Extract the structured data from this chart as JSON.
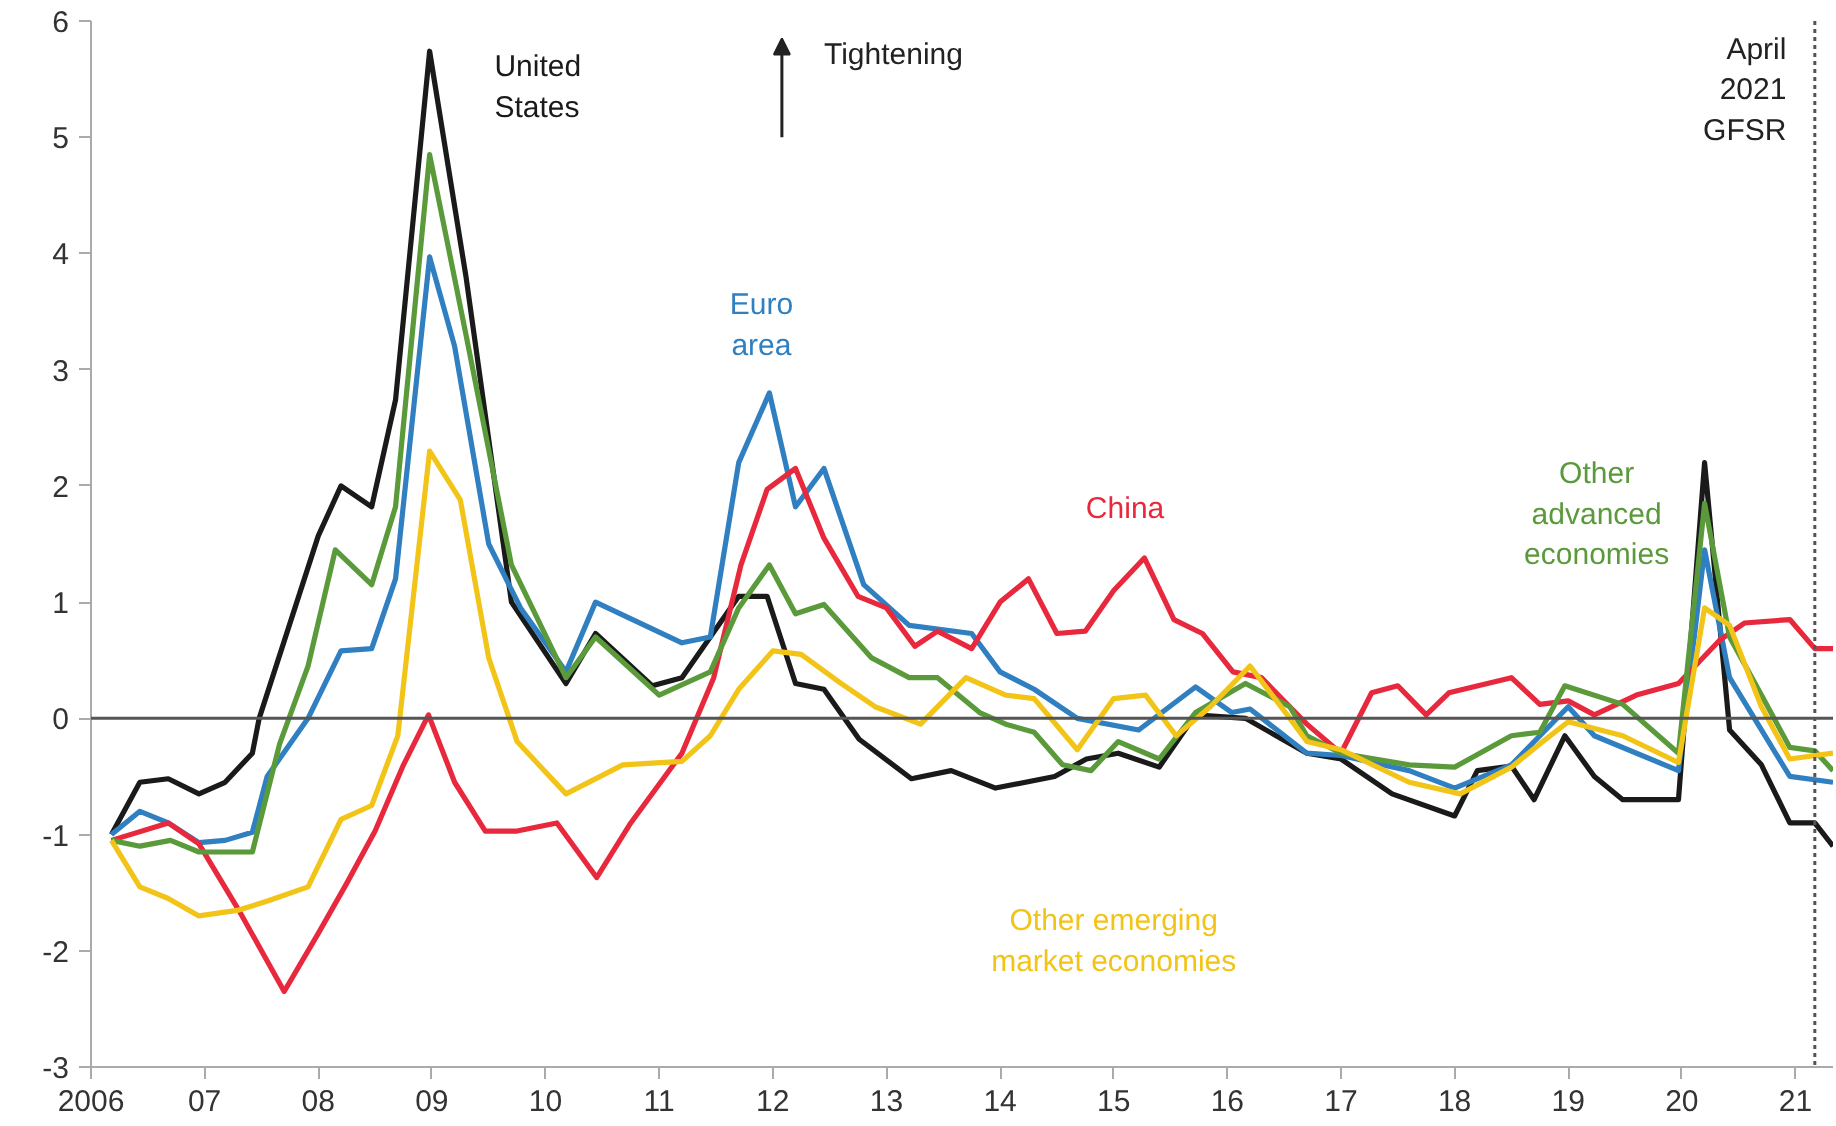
{
  "chart_data": {
    "type": "line",
    "xlim": [
      2006,
      2021.33
    ],
    "ylim": [
      -3,
      6
    ],
    "xticks": [
      {
        "value": 2006,
        "label": "2006"
      },
      {
        "value": 2007,
        "label": "07"
      },
      {
        "value": 2008,
        "label": "08"
      },
      {
        "value": 2009,
        "label": "09"
      },
      {
        "value": 2010,
        "label": "10"
      },
      {
        "value": 2011,
        "label": "11"
      },
      {
        "value": 2012,
        "label": "12"
      },
      {
        "value": 2013,
        "label": "13"
      },
      {
        "value": 2014,
        "label": "14"
      },
      {
        "value": 2015,
        "label": "15"
      },
      {
        "value": 2016,
        "label": "16"
      },
      {
        "value": 2017,
        "label": "17"
      },
      {
        "value": 2018,
        "label": "18"
      },
      {
        "value": 2019,
        "label": "19"
      },
      {
        "value": 2020,
        "label": "20"
      },
      {
        "value": 2021,
        "label": "21"
      }
    ],
    "yticks": [
      -3,
      -2,
      -1,
      0,
      1,
      2,
      3,
      4,
      5,
      6
    ],
    "grid": false,
    "line_style": "solid",
    "marker": "none",
    "annotations": [
      "Tightening"
    ],
    "ref_lines": [
      {
        "axis": "y",
        "value": 0,
        "color": "#555555",
        "line_style": "solid"
      },
      {
        "axis": "x",
        "value": 2021.17,
        "label": "April 2021 GFSR",
        "color": "#555555",
        "line_style": "dotted"
      }
    ],
    "series": [
      {
        "name": "United States",
        "color": "#1a1a1a",
        "x": [
          2006.18,
          2006.43,
          2006.68,
          2006.95,
          2007.18,
          2007.42,
          2007.48,
          2008.0,
          2008.2,
          2008.47,
          2008.68,
          2008.98,
          2009.3,
          2009.7,
          2010.18,
          2010.44,
          2010.94,
          2011.2,
          2011.7,
          2011.95,
          2012.2,
          2012.45,
          2012.76,
          2013.22,
          2013.57,
          2013.96,
          2014.48,
          2014.76,
          2015.04,
          2015.4,
          2015.72,
          2016.16,
          2016.7,
          2017.0,
          2017.45,
          2018.0,
          2018.2,
          2018.5,
          2018.7,
          2018.97,
          2019.23,
          2019.48,
          2019.97,
          2020.2,
          2020.42,
          2020.7,
          2020.95,
          2021.17,
          2021.33
        ],
        "values": [
          -1.0,
          -0.55,
          -0.52,
          -0.65,
          -0.55,
          -0.3,
          0.0,
          1.57,
          2.0,
          1.82,
          2.74,
          5.74,
          3.8,
          1.0,
          0.3,
          0.73,
          0.28,
          0.35,
          1.05,
          1.05,
          0.3,
          0.25,
          -0.18,
          -0.52,
          -0.45,
          -0.6,
          -0.5,
          -0.35,
          -0.3,
          -0.42,
          0.03,
          0.0,
          -0.3,
          -0.35,
          -0.65,
          -0.84,
          -0.45,
          -0.41,
          -0.7,
          -0.15,
          -0.5,
          -0.7,
          -0.7,
          2.2,
          -0.1,
          -0.4,
          -0.9,
          -0.9,
          -1.1
        ]
      },
      {
        "name": "Euro area",
        "color": "#2f7fc1",
        "x": [
          2006.18,
          2006.43,
          2006.68,
          2006.95,
          2007.18,
          2007.42,
          2007.55,
          2007.91,
          2008.2,
          2008.47,
          2008.68,
          2008.98,
          2009.2,
          2009.5,
          2009.78,
          2010.18,
          2010.44,
          2011.2,
          2011.45,
          2011.7,
          2011.97,
          2012.2,
          2012.45,
          2012.8,
          2013.2,
          2013.75,
          2014.0,
          2014.3,
          2014.68,
          2015.22,
          2015.72,
          2016.04,
          2016.2,
          2016.7,
          2017.0,
          2017.6,
          2018.0,
          2018.5,
          2019.0,
          2019.23,
          2019.97,
          2020.2,
          2020.42,
          2020.7,
          2020.95,
          2021.33
        ],
        "values": [
          -1.0,
          -0.8,
          -0.9,
          -1.07,
          -1.05,
          -0.98,
          -0.5,
          0.0,
          0.58,
          0.6,
          1.2,
          3.97,
          3.2,
          1.5,
          0.95,
          0.4,
          1.0,
          0.65,
          0.7,
          2.2,
          2.8,
          1.82,
          2.15,
          1.15,
          0.8,
          0.73,
          0.4,
          0.25,
          0.0,
          -0.1,
          0.27,
          0.05,
          0.08,
          -0.3,
          -0.32,
          -0.45,
          -0.6,
          -0.4,
          0.1,
          -0.15,
          -0.45,
          1.45,
          0.35,
          -0.1,
          -0.5,
          -0.55
        ]
      },
      {
        "name": "China",
        "color": "#e8283c",
        "x": [
          2006.18,
          2006.68,
          2006.95,
          2007.3,
          2007.7,
          2008.0,
          2008.25,
          2008.5,
          2008.75,
          2008.97,
          2009.2,
          2009.47,
          2009.75,
          2010.1,
          2010.45,
          2010.75,
          2011.2,
          2011.48,
          2011.72,
          2011.95,
          2012.2,
          2012.45,
          2012.75,
          2013.0,
          2013.25,
          2013.45,
          2013.75,
          2014.0,
          2014.25,
          2014.5,
          2014.75,
          2015.0,
          2015.27,
          2015.53,
          2015.78,
          2016.05,
          2016.3,
          2016.55,
          2016.7,
          2017.0,
          2017.27,
          2017.5,
          2017.75,
          2017.95,
          2018.5,
          2018.75,
          2019.0,
          2019.23,
          2019.6,
          2019.97,
          2020.33,
          2020.55,
          2020.95,
          2021.17,
          2021.33
        ],
        "values": [
          -1.05,
          -0.9,
          -1.08,
          -1.65,
          -2.35,
          -1.85,
          -1.42,
          -0.97,
          -0.4,
          0.03,
          -0.55,
          -0.97,
          -0.97,
          -0.9,
          -1.37,
          -0.9,
          -0.3,
          0.35,
          1.32,
          1.97,
          2.15,
          1.55,
          1.05,
          0.95,
          0.62,
          0.75,
          0.6,
          1.0,
          1.2,
          0.73,
          0.75,
          1.1,
          1.38,
          0.85,
          0.73,
          0.4,
          0.35,
          0.1,
          -0.05,
          -0.3,
          0.22,
          0.28,
          0.03,
          0.22,
          0.35,
          0.12,
          0.15,
          0.03,
          0.2,
          0.3,
          0.67,
          0.82,
          0.85,
          0.6,
          0.6
        ]
      },
      {
        "name": "Other advanced economies",
        "color": "#5a9a3a",
        "x": [
          2006.18,
          2006.43,
          2006.7,
          2006.95,
          2007.18,
          2007.42,
          2007.66,
          2007.91,
          2008.15,
          2008.47,
          2008.68,
          2008.98,
          2009.3,
          2009.7,
          2010.18,
          2010.44,
          2011.0,
          2011.45,
          2011.7,
          2011.97,
          2012.2,
          2012.45,
          2012.87,
          2013.2,
          2013.45,
          2013.82,
          2014.05,
          2014.3,
          2014.55,
          2014.8,
          2015.04,
          2015.4,
          2015.72,
          2016.16,
          2016.55,
          2016.7,
          2017.0,
          2017.6,
          2018.0,
          2018.5,
          2018.75,
          2018.97,
          2019.48,
          2019.97,
          2020.2,
          2020.42,
          2020.7,
          2020.95,
          2021.17,
          2021.33
        ],
        "values": [
          -1.05,
          -1.1,
          -1.05,
          -1.15,
          -1.15,
          -1.15,
          -0.22,
          0.45,
          1.45,
          1.15,
          1.82,
          4.85,
          3.3,
          1.32,
          0.35,
          0.7,
          0.2,
          0.4,
          0.95,
          1.32,
          0.9,
          0.98,
          0.52,
          0.35,
          0.35,
          0.05,
          -0.05,
          -0.12,
          -0.4,
          -0.45,
          -0.2,
          -0.35,
          0.05,
          0.3,
          0.1,
          -0.15,
          -0.3,
          -0.4,
          -0.42,
          -0.15,
          -0.12,
          0.28,
          0.12,
          -0.3,
          1.85,
          0.7,
          0.2,
          -0.25,
          -0.28,
          -0.45
        ]
      },
      {
        "name": "Other emerging market economies",
        "color": "#f2c418",
        "x": [
          2006.18,
          2006.43,
          2006.68,
          2006.95,
          2007.3,
          2007.56,
          2007.91,
          2008.2,
          2008.47,
          2008.7,
          2008.98,
          2009.25,
          2009.5,
          2009.75,
          2010.18,
          2010.68,
          2011.2,
          2011.45,
          2011.7,
          2012.0,
          2012.25,
          2012.6,
          2012.9,
          2013.3,
          2013.7,
          2014.05,
          2014.3,
          2014.68,
          2015.0,
          2015.28,
          2015.55,
          2015.85,
          2016.2,
          2016.55,
          2016.7,
          2017.0,
          2017.6,
          2018.05,
          2018.5,
          2018.75,
          2019.0,
          2019.48,
          2019.97,
          2020.2,
          2020.42,
          2020.7,
          2020.95,
          2021.33
        ],
        "values": [
          -1.05,
          -1.45,
          -1.55,
          -1.7,
          -1.65,
          -1.57,
          -1.45,
          -0.87,
          -0.75,
          -0.15,
          2.3,
          1.88,
          0.52,
          -0.2,
          -0.65,
          -0.4,
          -0.37,
          -0.15,
          0.25,
          0.58,
          0.55,
          0.3,
          0.1,
          -0.05,
          0.35,
          0.2,
          0.17,
          -0.27,
          0.17,
          0.2,
          -0.15,
          0.1,
          0.45,
          0.0,
          -0.2,
          -0.27,
          -0.55,
          -0.65,
          -0.42,
          -0.22,
          -0.03,
          -0.15,
          -0.38,
          0.95,
          0.8,
          0.1,
          -0.35,
          -0.3
        ]
      }
    ]
  }
}
